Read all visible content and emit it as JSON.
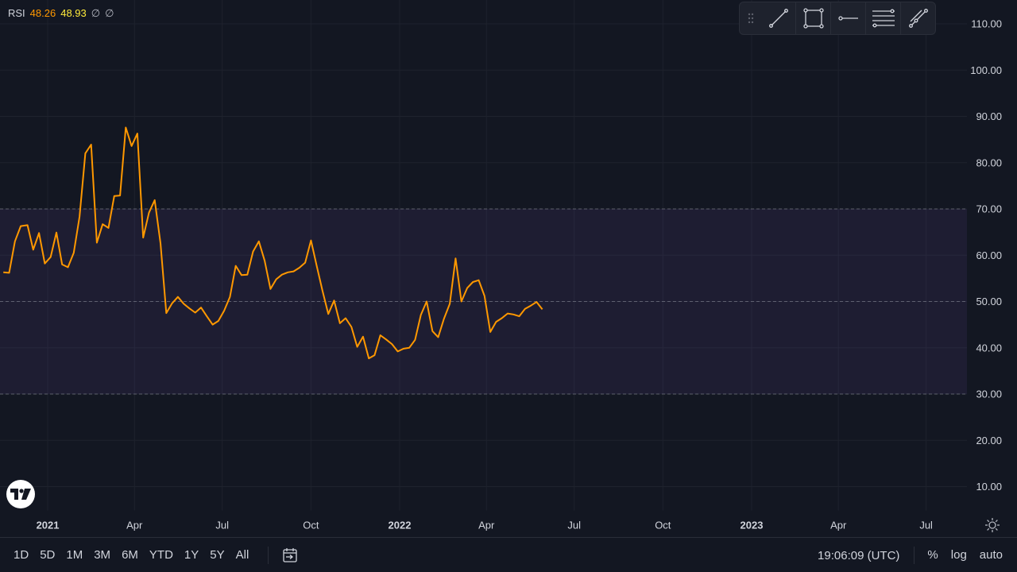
{
  "legend": {
    "name": "RSI",
    "rsi_value": "48.26",
    "ma_value": "48.93",
    "na1": "∅",
    "na2": "∅"
  },
  "drawing_tools": [
    "trend-line",
    "rectangle",
    "horizontal-ray",
    "parallel-channel",
    "fib-retracement"
  ],
  "bottom_bar": {
    "ranges": [
      "1D",
      "5D",
      "1M",
      "3M",
      "6M",
      "YTD",
      "1Y",
      "5Y",
      "All"
    ],
    "clock": "19:06:09 (UTC)",
    "percent_label": "%",
    "log_label": "log",
    "auto_label": "auto"
  },
  "colors": {
    "background": "#131722",
    "rsi_line": "#ff9800",
    "ma_value": "#ffeb3b",
    "band_fill": "#7e57c2",
    "grid": "#1e222d",
    "text": "#d1d4dc"
  },
  "chart_data": {
    "type": "line",
    "title": "RSI",
    "ylim": [
      4.5,
      115
    ],
    "y_ticks": [
      10,
      20,
      30,
      40,
      50,
      60,
      70,
      80,
      90,
      100,
      110
    ],
    "y_tick_labels": [
      "10.00",
      "20.00",
      "30.00",
      "40.00",
      "50.00",
      "60.00",
      "70.00",
      "80.00",
      "90.00",
      "100.00",
      "110.00"
    ],
    "x_axis_start": "2020-11-15",
    "xlim": [
      "2020-11-15",
      "2023-09-20"
    ],
    "x_ticks": [
      "2021-01-01",
      "2021-04-01",
      "2021-07-01",
      "2021-10-01",
      "2022-01-01",
      "2022-04-01",
      "2022-07-01",
      "2022-10-01",
      "2023-01-01",
      "2023-04-01",
      "2023-07-01"
    ],
    "x_tick_labels": [
      "2021",
      "Apr",
      "Jul",
      "Oct",
      "2022",
      "Apr",
      "Jul",
      "Oct",
      "2023",
      "Apr",
      "Jul"
    ],
    "x_tick_bold": [
      true,
      false,
      false,
      false,
      true,
      false,
      false,
      false,
      true,
      false,
      false
    ],
    "bands": {
      "upper": 70,
      "middle": 50,
      "lower": 30
    },
    "series": [
      {
        "name": "RSI",
        "color": "#ff9800",
        "points": [
          [
            "2020-11-16",
            56.3
          ],
          [
            "2020-11-22",
            56.2
          ],
          [
            "2020-11-28",
            63.0
          ],
          [
            "2020-12-04",
            66.3
          ],
          [
            "2020-12-11",
            66.5
          ],
          [
            "2020-12-17",
            61.2
          ],
          [
            "2020-12-23",
            64.8
          ],
          [
            "2020-12-29",
            58.2
          ],
          [
            "2021-01-04",
            59.6
          ],
          [
            "2021-01-10",
            64.9
          ],
          [
            "2021-01-16",
            58.0
          ],
          [
            "2021-01-22",
            57.4
          ],
          [
            "2021-01-28",
            60.5
          ],
          [
            "2021-02-03",
            68.3
          ],
          [
            "2021-02-09",
            82.0
          ],
          [
            "2021-02-15",
            83.9
          ],
          [
            "2021-02-21",
            62.7
          ],
          [
            "2021-02-27",
            66.7
          ],
          [
            "2021-03-05",
            65.9
          ],
          [
            "2021-03-11",
            72.8
          ],
          [
            "2021-03-17",
            72.9
          ],
          [
            "2021-03-23",
            87.6
          ],
          [
            "2021-03-29",
            83.6
          ],
          [
            "2021-04-04",
            86.3
          ],
          [
            "2021-04-10",
            63.8
          ],
          [
            "2021-04-16",
            69.2
          ],
          [
            "2021-04-22",
            71.9
          ],
          [
            "2021-04-28",
            62.6
          ],
          [
            "2021-05-04",
            47.5
          ],
          [
            "2021-05-10",
            49.6
          ],
          [
            "2021-05-16",
            51.0
          ],
          [
            "2021-05-22",
            49.5
          ],
          [
            "2021-05-28",
            48.5
          ],
          [
            "2021-06-03",
            47.6
          ],
          [
            "2021-06-09",
            48.7
          ],
          [
            "2021-06-15",
            46.8
          ],
          [
            "2021-06-21",
            45.0
          ],
          [
            "2021-06-27",
            45.8
          ],
          [
            "2021-07-03",
            48.0
          ],
          [
            "2021-07-09",
            51.0
          ],
          [
            "2021-07-15",
            57.7
          ],
          [
            "2021-07-21",
            55.7
          ],
          [
            "2021-07-27",
            55.8
          ],
          [
            "2021-08-02",
            60.8
          ],
          [
            "2021-08-08",
            63.0
          ],
          [
            "2021-08-14",
            58.8
          ],
          [
            "2021-08-20",
            52.7
          ],
          [
            "2021-08-26",
            54.8
          ],
          [
            "2021-09-01",
            55.8
          ],
          [
            "2021-09-07",
            56.3
          ],
          [
            "2021-09-13",
            56.5
          ],
          [
            "2021-09-19",
            57.3
          ],
          [
            "2021-09-25",
            58.4
          ],
          [
            "2021-10-01",
            63.2
          ],
          [
            "2021-10-07",
            57.7
          ],
          [
            "2021-10-13",
            52.3
          ],
          [
            "2021-10-19",
            47.3
          ],
          [
            "2021-10-25",
            50.2
          ],
          [
            "2021-10-31",
            45.3
          ],
          [
            "2021-11-06",
            46.4
          ],
          [
            "2021-11-12",
            44.5
          ],
          [
            "2021-11-18",
            40.2
          ],
          [
            "2021-11-24",
            42.4
          ],
          [
            "2021-11-30",
            37.7
          ],
          [
            "2021-12-06",
            38.4
          ],
          [
            "2021-12-12",
            42.7
          ],
          [
            "2021-12-18",
            41.8
          ],
          [
            "2021-12-24",
            40.8
          ],
          [
            "2021-12-30",
            39.2
          ],
          [
            "2022-01-05",
            39.8
          ],
          [
            "2022-01-11",
            40.0
          ],
          [
            "2022-01-17",
            41.7
          ],
          [
            "2022-01-23",
            47.1
          ],
          [
            "2022-01-29",
            50.0
          ],
          [
            "2022-02-04",
            43.6
          ],
          [
            "2022-02-10",
            42.3
          ],
          [
            "2022-02-16",
            46.3
          ],
          [
            "2022-02-22",
            49.5
          ],
          [
            "2022-02-28",
            59.3
          ],
          [
            "2022-03-06",
            50.0
          ],
          [
            "2022-03-12",
            52.9
          ],
          [
            "2022-03-18",
            54.2
          ],
          [
            "2022-03-24",
            54.6
          ],
          [
            "2022-03-30",
            51.2
          ],
          [
            "2022-04-05",
            43.4
          ],
          [
            "2022-04-11",
            45.6
          ],
          [
            "2022-04-17",
            46.4
          ],
          [
            "2022-04-23",
            47.4
          ],
          [
            "2022-04-29",
            47.2
          ],
          [
            "2022-05-05",
            46.8
          ],
          [
            "2022-05-11",
            48.4
          ],
          [
            "2022-05-17",
            49.1
          ],
          [
            "2022-05-23",
            49.9
          ],
          [
            "2022-05-29",
            48.3
          ]
        ]
      }
    ]
  }
}
